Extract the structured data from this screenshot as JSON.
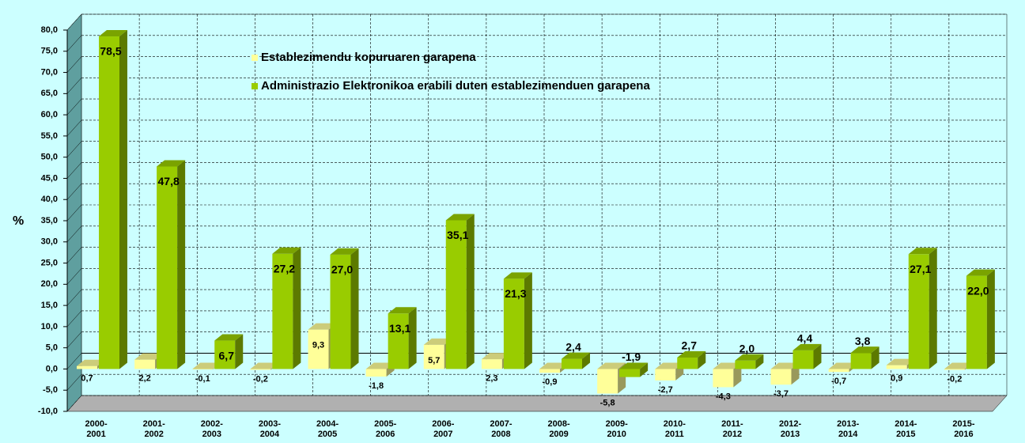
{
  "chart_data": {
    "type": "bar3d",
    "y_axis_label": "%",
    "categories": [
      "2000-\n2001",
      "2001-\n2002",
      "2002-\n2003",
      "2003-\n2004",
      "2004-\n2005",
      "2005-\n2006",
      "2006-\n2007",
      "2007-\n2008",
      "2008-\n2009",
      "2009-\n2010",
      "2010-\n2011",
      "2011-\n2012",
      "2012-\n2013",
      "2013-\n2014",
      "2014-\n2015",
      "2015-\n2016"
    ],
    "series": [
      {
        "name": "Establezimendu kopuruaren garapena",
        "color": "#ffff99",
        "values": [
          0.7,
          2.2,
          -0.1,
          -0.2,
          9.3,
          -1.8,
          5.7,
          2.3,
          -0.9,
          -5.8,
          -2.7,
          -4.3,
          -3.7,
          -0.7,
          0.9,
          -0.2
        ],
        "value_labels": [
          "0,7",
          "2,2",
          "-0,1",
          "-0,2",
          "9,3",
          "-1,8",
          "5,7",
          "2,3",
          "-0,9",
          "-5,8",
          "-2,7",
          "-4,3",
          "-3,7",
          "-0,7",
          "0,9",
          "-0,2"
        ]
      },
      {
        "name": "Administrazio Elektronikoa erabili duten establezimenduen garapena",
        "color": "#99cc00",
        "values": [
          78.5,
          47.8,
          6.7,
          27.2,
          27.0,
          13.1,
          35.1,
          21.3,
          2.4,
          -1.9,
          2.7,
          2.0,
          4.4,
          3.8,
          27.1,
          22.0
        ],
        "value_labels": [
          "78,5",
          "47,8",
          "6,7",
          "27,2",
          "27,0",
          "13,1",
          "35,1",
          "21,3",
          "2,4",
          "-1,9",
          "2,7",
          "2,0",
          "4,4",
          "3,8",
          "27,1",
          "22,0"
        ]
      }
    ],
    "ylim": [
      -10,
      80
    ],
    "yticks": [
      {
        "value": -10,
        "label": "-10,0"
      },
      {
        "value": -5,
        "label": "-5,0"
      },
      {
        "value": 0,
        "label": "0,0"
      },
      {
        "value": 5,
        "label": "5,0"
      },
      {
        "value": 10,
        "label": "10,0"
      },
      {
        "value": 15,
        "label": "15,0"
      },
      {
        "value": 20,
        "label": "20,0"
      },
      {
        "value": 25,
        "label": "25,0"
      },
      {
        "value": 30,
        "label": "30,0"
      },
      {
        "value": 35,
        "label": "35,0"
      },
      {
        "value": 40,
        "label": "40,0"
      },
      {
        "value": 45,
        "label": "45,0"
      },
      {
        "value": 50,
        "label": "50,0"
      },
      {
        "value": 55,
        "label": "55,0"
      },
      {
        "value": 60,
        "label": "60,0"
      },
      {
        "value": 65,
        "label": "65,0"
      },
      {
        "value": 70,
        "label": "70,0"
      },
      {
        "value": 75,
        "label": "75,0"
      },
      {
        "value": 80,
        "label": "80,0"
      }
    ],
    "grid": true,
    "legend": "top-left"
  }
}
